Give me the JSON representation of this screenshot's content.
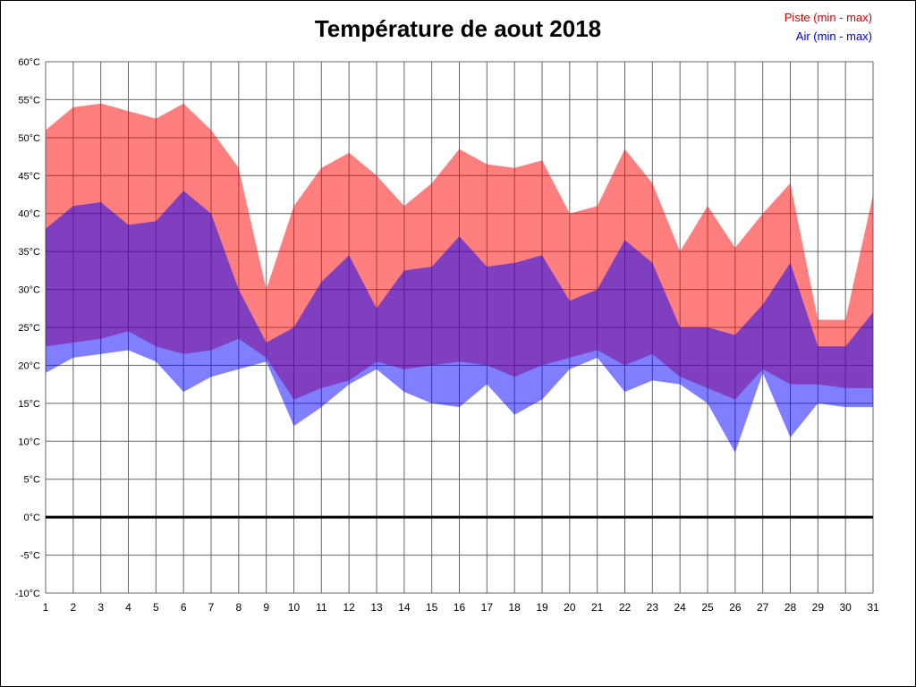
{
  "page": {
    "title": "Température de aout 2018"
  },
  "legend": {
    "piste_label": "Piste (min - max)",
    "air_label": "Air (min - max)",
    "piste_color": "#d40000",
    "air_color": "#0000cc"
  },
  "chart_data": {
    "type": "area",
    "title": "Température de aout 2018",
    "x": [
      1,
      2,
      3,
      4,
      5,
      6,
      7,
      8,
      9,
      10,
      11,
      12,
      13,
      14,
      15,
      16,
      17,
      18,
      19,
      20,
      21,
      22,
      23,
      24,
      25,
      26,
      27,
      28,
      29,
      30,
      31
    ],
    "x_tick_labels": [
      "1",
      "2",
      "3",
      "4",
      "5",
      "6",
      "7",
      "8",
      "9",
      "10",
      "11",
      "12",
      "13",
      "14",
      "15",
      "16",
      "17",
      "18",
      "19",
      "20",
      "21",
      "22",
      "23",
      "24",
      "25",
      "26",
      "27",
      "28",
      "29",
      "30",
      "31"
    ],
    "ylim": [
      -10,
      60
    ],
    "y_tick_step": 5,
    "y_tick_labels": [
      "60°C",
      "55°C",
      "50°C",
      "45°C",
      "40°C",
      "35°C",
      "30°C",
      "25°C",
      "20°C",
      "15°C",
      "10°C",
      "5°C",
      "0°C",
      "-5°C",
      "-10°C"
    ],
    "grid": true,
    "zero_line_value": 0,
    "legend_position": "top-right",
    "series": [
      {
        "name": "Piste max",
        "key": "piste_max",
        "values": [
          51,
          54,
          54.5,
          53.5,
          52.5,
          54.5,
          51,
          46,
          30,
          41,
          46,
          48,
          45,
          41,
          44,
          48.5,
          46.5,
          46,
          47,
          40,
          41,
          48.5,
          44,
          35,
          41,
          35.5,
          40,
          44,
          26,
          26,
          42.5
        ]
      },
      {
        "name": "Piste min",
        "key": "piste_min",
        "values": [
          22.5,
          23,
          23.5,
          24.5,
          22.5,
          21.5,
          22,
          23.5,
          21,
          15.5,
          17,
          18,
          20.5,
          19.5,
          20,
          20.5,
          20,
          18.5,
          20,
          21,
          22,
          20,
          21.5,
          18.5,
          17,
          15.5,
          19.5,
          17.5,
          17.5,
          17,
          17
        ]
      },
      {
        "name": "Air max",
        "key": "air_max",
        "values": [
          38,
          41,
          41.5,
          38.5,
          39,
          43,
          40,
          30,
          23,
          25,
          31,
          34.5,
          27.5,
          32.5,
          33,
          37,
          33,
          33.5,
          34.5,
          28.5,
          30,
          36.5,
          33.5,
          25,
          25,
          24,
          28,
          33.5,
          22.5,
          22.5,
          27
        ]
      },
      {
        "name": "Air min",
        "key": "air_min",
        "values": [
          19,
          21,
          21.5,
          22,
          20.5,
          16.5,
          18.5,
          19.5,
          20.5,
          12,
          14.5,
          17.5,
          19.5,
          16.5,
          15,
          14.5,
          17.5,
          13.5,
          15.5,
          19.5,
          21,
          16.5,
          18,
          17.5,
          15,
          8.5,
          19,
          10.5,
          15,
          14.5,
          14.5
        ]
      }
    ],
    "colors": {
      "piste_fill": "rgba(255,0,0,0.5)",
      "air_fill": "rgba(0,0,255,0.5)",
      "grid": "#666666",
      "zero_line": "#000000"
    }
  }
}
